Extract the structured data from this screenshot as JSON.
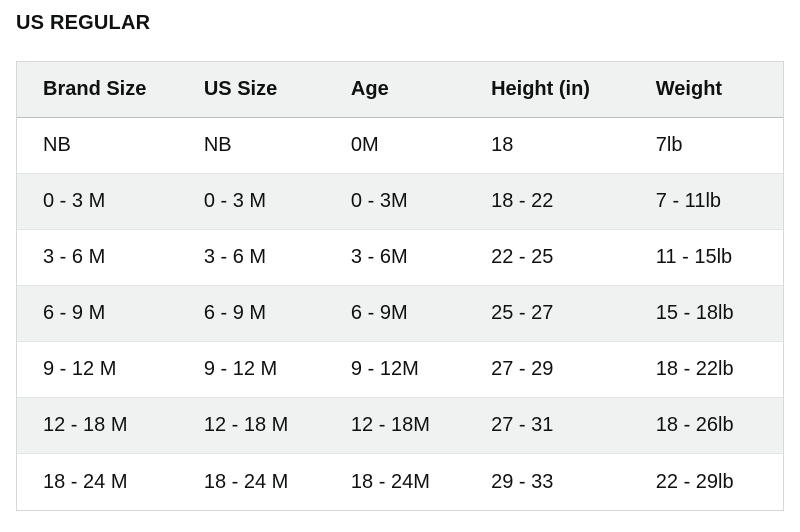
{
  "page": {
    "title": "US REGULAR"
  },
  "colors": {
    "text": "#0F1111",
    "stripe_bg": "#F0F2F2",
    "header_bg": "#F0F2F2",
    "outer_border": "#D5D9D9",
    "row_divider": "#E3E6E6"
  },
  "table": {
    "headers": [
      "Brand Size",
      "US Size",
      "Age",
      "Height (in)",
      "Weight"
    ],
    "rows": [
      [
        "NB",
        "NB",
        "0M",
        "18",
        "7lb"
      ],
      [
        "0 - 3 M",
        "0 - 3 M",
        "0 - 3M",
        "18 - 22",
        "7 - 11lb"
      ],
      [
        "3 - 6 M",
        "3 - 6 M",
        "3 - 6M",
        "22 - 25",
        "11 - 15lb"
      ],
      [
        "6 - 9 M",
        "6 - 9 M",
        "6 - 9M",
        "25 - 27",
        "15 - 18lb"
      ],
      [
        "9 - 12 M",
        "9 - 12 M",
        "9 - 12M",
        "27 - 29",
        "18 - 22lb"
      ],
      [
        "12 - 18 M",
        "12 - 18 M",
        "12 - 18M",
        "27 - 31",
        "18 - 26lb"
      ],
      [
        "18 - 24 M",
        "18 - 24 M",
        "18 - 24M",
        "29 - 33",
        "22 - 29lb"
      ]
    ]
  }
}
